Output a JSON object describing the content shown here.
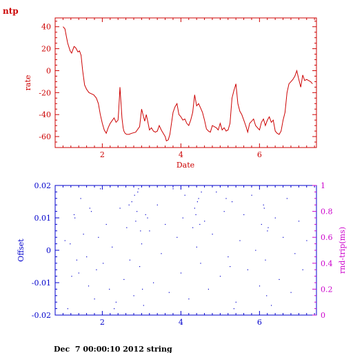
{
  "title": "ntp",
  "footer": "Dec  7 00:00:10 2012 string",
  "colors": {
    "top": "#cc0000",
    "bottom": "#0000cc",
    "right_axis": "#cc00cc"
  },
  "chart_data": [
    {
      "type": "line",
      "xlabel": "Date",
      "ylabel": "rate",
      "xlim": [
        0.8,
        7.45
      ],
      "ylim": [
        -70,
        48
      ],
      "xticks": [
        2,
        4,
        6
      ],
      "xtick_labels": [
        "2",
        "4",
        "6"
      ],
      "yticks": [
        -60,
        -40,
        -20,
        0,
        20,
        40
      ],
      "ytick_labels": [
        "-60",
        "-40",
        "-20",
        "0",
        "20",
        "40"
      ],
      "series": [
        {
          "x": [
            1.0,
            1.05,
            1.08,
            1.12,
            1.18,
            1.22,
            1.28,
            1.32,
            1.38,
            1.42,
            1.46,
            1.5,
            1.55,
            1.6,
            1.66,
            1.72,
            1.78,
            1.85,
            1.9,
            1.95,
            2.0,
            2.05,
            2.1,
            2.15,
            2.2,
            2.3,
            2.35,
            2.4,
            2.42,
            2.45,
            2.5,
            2.53,
            2.55,
            2.58,
            2.62,
            2.68,
            2.75,
            2.85,
            2.95,
            3.0,
            3.05,
            3.08,
            3.12,
            3.15,
            3.2,
            3.25,
            3.3,
            3.35,
            3.4,
            3.45,
            3.5,
            3.55,
            3.6,
            3.63,
            3.68,
            3.72,
            3.8,
            3.85,
            3.9,
            3.95,
            4.0,
            4.05,
            4.1,
            4.15,
            4.2,
            4.25,
            4.3,
            4.35,
            4.4,
            4.45,
            4.5,
            4.55,
            4.6,
            4.65,
            4.7,
            4.75,
            4.8,
            4.9,
            4.95,
            5.0,
            5.05,
            5.1,
            5.15,
            5.2,
            5.25,
            5.3,
            5.35,
            5.4,
            5.45,
            5.5,
            5.55,
            5.6,
            5.65,
            5.7,
            5.75,
            5.8,
            5.85,
            5.9,
            5.95,
            6.0,
            6.05,
            6.1,
            6.15,
            6.2,
            6.25,
            6.3,
            6.35,
            6.4,
            6.45,
            6.5,
            6.55,
            6.6,
            6.65,
            6.7,
            6.75,
            6.8,
            6.85,
            6.9,
            6.95,
            7.0,
            7.05,
            7.1,
            7.15,
            7.2,
            7.25,
            7.3,
            7.35
          ],
          "y": [
            40,
            38,
            32,
            25,
            18,
            16,
            22,
            21,
            17,
            18,
            14,
            0,
            -13,
            -17,
            -20,
            -21,
            -22,
            -25,
            -30,
            -40,
            -48,
            -54,
            -57,
            -52,
            -48,
            -43,
            -47,
            -45,
            -35,
            -15,
            -43,
            -52,
            -55,
            -57,
            -58,
            -58,
            -57,
            -56,
            -51,
            -35,
            -42,
            -46,
            -40,
            -45,
            -54,
            -52,
            -55,
            -56,
            -55,
            -50,
            -54,
            -57,
            -60,
            -64,
            -63,
            -58,
            -38,
            -33,
            -30,
            -40,
            -42,
            -45,
            -44,
            -48,
            -50,
            -45,
            -38,
            -22,
            -32,
            -30,
            -34,
            -38,
            -45,
            -53,
            -55,
            -56,
            -50,
            -52,
            -54,
            -48,
            -54,
            -52,
            -55,
            -54,
            -48,
            -25,
            -18,
            -12,
            -30,
            -37,
            -40,
            -45,
            -50,
            -56,
            -48,
            -46,
            -44,
            -50,
            -52,
            -54,
            -47,
            -44,
            -50,
            -45,
            -42,
            -47,
            -45,
            -55,
            -57,
            -58,
            -55,
            -45,
            -38,
            -20,
            -12,
            -10,
            -8,
            -5,
            0,
            -8,
            -15,
            -4,
            -9,
            -8,
            -9,
            -10,
            -12
          ]
        }
      ]
    },
    {
      "type": "scatter",
      "ylabel": "Offset",
      "ylabel_right": "rnd-trip(ms)",
      "xlim": [
        0.8,
        7.45
      ],
      "ylim": [
        -0.02,
        0.02
      ],
      "ylim_right": [
        0,
        1
      ],
      "xticks": [
        2,
        4,
        6
      ],
      "xtick_labels": [
        "2",
        "4",
        "6"
      ],
      "yticks": [
        -0.02,
        -0.01,
        0,
        0.01,
        0.02
      ],
      "ytick_labels": [
        "-0.02",
        "-0.01",
        "0",
        "0.01",
        "0.02"
      ],
      "yticks_right": [
        0,
        0.2,
        0.4,
        0.6,
        0.8,
        1
      ],
      "ytick_labels_right": [
        "0",
        "0.2",
        "0.4",
        "0.6",
        "0.8",
        "1"
      ],
      "series": [
        {
          "x": [
            1.05,
            1.12,
            1.18,
            1.22,
            1.28,
            1.35,
            1.4,
            1.45,
            1.52,
            1.6,
            1.65,
            1.72,
            1.8,
            1.85,
            1.9,
            1.95,
            2.02,
            2.1,
            2.18,
            2.25,
            2.35,
            2.45,
            2.55,
            2.62,
            2.7,
            2.75,
            2.8,
            2.85,
            2.9,
            2.95,
            3.0,
            3.05,
            3.1,
            3.2,
            3.3,
            3.4,
            3.5,
            3.6,
            3.7,
            3.8,
            3.9,
            4.0,
            4.05,
            4.1,
            4.2,
            4.3,
            4.35,
            4.4,
            4.45,
            4.5,
            4.6,
            4.7,
            4.8,
            4.9,
            5.0,
            5.1,
            5.2,
            5.3,
            5.4,
            5.5,
            5.6,
            5.7,
            5.8,
            5.9,
            6.0,
            6.05,
            6.1,
            6.15,
            6.2,
            6.3,
            6.4,
            6.5,
            6.6,
            6.7,
            6.8,
            6.9,
            7.0,
            7.1,
            7.2,
            2.82,
            2.88,
            2.92,
            2.97,
            4.38,
            4.42,
            4.48,
            4.52,
            6.12,
            6.18,
            6.22,
            3.02,
            3.15,
            5.15,
            5.25,
            5.35,
            1.3,
            1.68,
            2.3,
            2.68
          ],
          "y": [
            0.003,
            -0.018,
            0.002,
            -0.008,
            0.011,
            -0.003,
            -0.007,
            0.016,
            0.005,
            -0.002,
            -0.011,
            0.012,
            -0.015,
            -0.006,
            0.004,
            0.019,
            -0.004,
            0.008,
            -0.012,
            0.001,
            -0.016,
            0.013,
            -0.009,
            0.007,
            -0.003,
            0.015,
            -0.014,
            0.009,
            0.018,
            -0.005,
            0.002,
            -0.017,
            0.011,
            0.006,
            -0.01,
            0.014,
            -0.001,
            0.008,
            -0.013,
            0.019,
            0.004,
            -0.007,
            0.01,
            0.017,
            -0.015,
            0.007,
            0.013,
            0.001,
            0.016,
            -0.004,
            0.009,
            -0.012,
            0.005,
            0.018,
            -0.008,
            0.012,
            -0.002,
            0.015,
            -0.016,
            0.003,
            0.011,
            -0.006,
            0.017,
            0.0,
            -0.011,
            0.008,
            0.014,
            -0.003,
            0.006,
            -0.017,
            0.01,
            -0.009,
            0.004,
            0.016,
            -0.013,
            -0.001,
            0.009,
            -0.006,
            0.003,
            0.017,
            0.012,
            0.019,
            0.006,
            0.011,
            0.015,
            0.008,
            0.018,
            0.013,
            -0.014,
            0.007,
            -0.012,
            0.01,
            0.016,
            -0.005,
            -0.018,
            0.01,
            0.013,
            -0.018,
            0.014
          ]
        }
      ]
    }
  ]
}
